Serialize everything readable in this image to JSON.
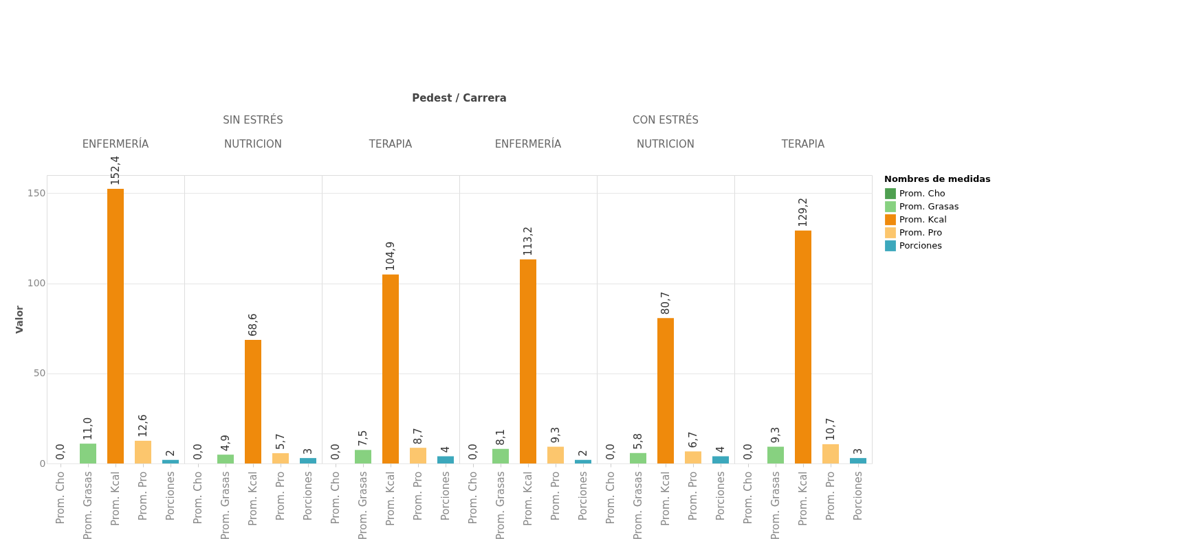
{
  "chart_data": [
    {
      "type": "bar",
      "title": "ENFERMERÍA",
      "annotations": [
        "Pedest / Carrera"
      ],
      "ylabel": "Valor",
      "categories": [
        "Prom. Cho",
        "Prom. Grasas",
        "Prom. Kcal",
        "Prom. Pro",
        "Porciones"
      ],
      "ylim": [
        0,
        160
      ],
      "yticks": [
        0,
        50,
        100,
        150
      ],
      "grid": "y",
      "series": [
        {
          "color": "#4e9f50",
          "values": [
            0,
            null,
            null,
            null,
            null
          ],
          "value_labels": [
            "0,0",
            null,
            null,
            null,
            null
          ]
        },
        {
          "color": "#87d180",
          "values": [
            null,
            11.0,
            null,
            null,
            null
          ],
          "value_labels": [
            null,
            "11,0",
            null,
            null,
            null
          ]
        },
        {
          "color": "#ef8a0c",
          "values": [
            null,
            null,
            152.4,
            null,
            null
          ],
          "value_labels": [
            null,
            null,
            "152,4",
            null,
            null
          ]
        },
        {
          "color": "#fcc66d",
          "values": [
            null,
            null,
            null,
            12.6,
            null
          ],
          "value_labels": [
            null,
            null,
            null,
            "12,6",
            null
          ]
        },
        {
          "color": "#3ca8bc",
          "values": [
            null,
            null,
            null,
            null,
            2
          ],
          "value_labels": [
            null,
            null,
            null,
            null,
            "2"
          ]
        }
      ]
    },
    {
      "type": "bar",
      "title": "NUTRICION",
      "subtitle": "SIN ESTRÉS",
      "categories": [
        "Prom. Cho",
        "Prom. Grasas",
        "Prom. Kcal",
        "Prom. Pro",
        "Porciones"
      ],
      "ylim": [
        0,
        160
      ],
      "yticks": [
        0,
        50,
        100,
        150
      ],
      "grid": "y",
      "tick_labels": "x",
      "series": [
        {
          "color": "#4e9f50",
          "values": [
            0,
            null,
            null,
            null,
            null
          ],
          "value_labels": [
            "0,0",
            null,
            null,
            null,
            null
          ]
        },
        {
          "color": "#87d180",
          "values": [
            null,
            4.9,
            null,
            null,
            null
          ],
          "value_labels": [
            null,
            "4,9",
            null,
            null,
            null
          ]
        },
        {
          "color": "#ef8a0c",
          "values": [
            null,
            null,
            68.6,
            null,
            null
          ],
          "value_labels": [
            null,
            null,
            "68,6",
            null,
            null
          ]
        },
        {
          "color": "#fcc66d",
          "values": [
            null,
            null,
            null,
            5.7,
            null
          ],
          "value_labels": [
            null,
            null,
            null,
            "5,7",
            null
          ]
        },
        {
          "color": "#3ca8bc",
          "values": [
            null,
            null,
            null,
            null,
            3
          ],
          "value_labels": [
            null,
            null,
            null,
            null,
            "3"
          ]
        }
      ]
    },
    {
      "type": "bar",
      "title": "TERAPIA",
      "categories": [
        "Prom. Cho",
        "Prom. Grasas",
        "Prom. Kcal",
        "Prom. Pro",
        "Porciones"
      ],
      "ylim": [
        0,
        160
      ],
      "yticks": [
        0,
        50,
        100,
        150
      ],
      "grid": "y",
      "tick_labels": "x",
      "series": [
        {
          "color": "#4e9f50",
          "values": [
            0,
            null,
            null,
            null,
            null
          ],
          "value_labels": [
            "0,0",
            null,
            null,
            null,
            null
          ]
        },
        {
          "color": "#87d180",
          "values": [
            null,
            7.5,
            null,
            null,
            null
          ],
          "value_labels": [
            null,
            "7,5",
            null,
            null,
            null
          ]
        },
        {
          "color": "#ef8a0c",
          "values": [
            null,
            null,
            104.9,
            null,
            null
          ],
          "value_labels": [
            null,
            null,
            "104,9",
            null,
            null
          ]
        },
        {
          "color": "#fcc66d",
          "values": [
            null,
            null,
            null,
            8.7,
            null
          ],
          "value_labels": [
            null,
            null,
            null,
            "8,7",
            null
          ]
        },
        {
          "color": "#3ca8bc",
          "values": [
            null,
            null,
            null,
            null,
            4
          ],
          "value_labels": [
            null,
            null,
            null,
            null,
            "4"
          ]
        }
      ]
    },
    {
      "type": "bar",
      "title": "ENFERMERÍA",
      "categories": [
        "Prom. Cho",
        "Prom. Grasas",
        "Prom. Kcal",
        "Prom. Pro",
        "Porciones"
      ],
      "ylim": [
        0,
        160
      ],
      "yticks": [
        0,
        50,
        100,
        150
      ],
      "grid": "y",
      "tick_labels": "x",
      "series": [
        {
          "color": "#4e9f50",
          "values": [
            0,
            null,
            null,
            null,
            null
          ],
          "value_labels": [
            "0,0",
            null,
            null,
            null,
            null
          ]
        },
        {
          "color": "#87d180",
          "values": [
            null,
            8.1,
            null,
            null,
            null
          ],
          "value_labels": [
            null,
            "8,1",
            null,
            null,
            null
          ]
        },
        {
          "color": "#ef8a0c",
          "values": [
            null,
            null,
            113.2,
            null,
            null
          ],
          "value_labels": [
            null,
            null,
            "113,2",
            null,
            null
          ]
        },
        {
          "color": "#fcc66d",
          "values": [
            null,
            null,
            null,
            9.3,
            null
          ],
          "value_labels": [
            null,
            null,
            null,
            "9,3",
            null
          ]
        },
        {
          "color": "#3ca8bc",
          "values": [
            null,
            null,
            null,
            null,
            2
          ],
          "value_labels": [
            null,
            null,
            null,
            null,
            "2"
          ]
        }
      ]
    },
    {
      "type": "bar",
      "title": "NUTRICION",
      "subtitle": "CON ESTRÉS",
      "categories": [
        "Prom. Cho",
        "Prom. Grasas",
        "Prom. Kcal",
        "Prom. Pro",
        "Porciones"
      ],
      "ylim": [
        0,
        160
      ],
      "yticks": [
        0,
        50,
        100,
        150
      ],
      "grid": "y",
      "tick_labels": "x",
      "series": [
        {
          "color": "#4e9f50",
          "values": [
            0,
            null,
            null,
            null,
            null
          ],
          "value_labels": [
            "0,0",
            null,
            null,
            null,
            null
          ]
        },
        {
          "color": "#87d180",
          "values": [
            null,
            5.8,
            null,
            null,
            null
          ],
          "value_labels": [
            null,
            "5,8",
            null,
            null,
            null
          ]
        },
        {
          "color": "#ef8a0c",
          "values": [
            null,
            null,
            80.7,
            null,
            null
          ],
          "value_labels": [
            null,
            null,
            "80,7",
            null,
            null
          ]
        },
        {
          "color": "#fcc66d",
          "values": [
            null,
            null,
            null,
            6.7,
            null
          ],
          "value_labels": [
            null,
            null,
            null,
            "6,7",
            null
          ]
        },
        {
          "color": "#3ca8bc",
          "values": [
            null,
            null,
            null,
            null,
            4
          ],
          "value_labels": [
            null,
            null,
            null,
            null,
            "4"
          ]
        }
      ]
    },
    {
      "type": "bar",
      "title": "TERAPIA",
      "categories": [
        "Prom. Cho",
        "Prom. Grasas",
        "Prom. Kcal",
        "Prom. Pro",
        "Porciones"
      ],
      "ylim": [
        0,
        160
      ],
      "yticks": [
        0,
        50,
        100,
        150
      ],
      "grid": "y",
      "tick_labels": "x",
      "legend": "right",
      "legend_title": "Nombres de medidas",
      "series": [
        {
          "name": "Prom. Cho",
          "color": "#4e9f50",
          "values": [
            0,
            null,
            null,
            null,
            null
          ],
          "value_labels": [
            "0,0",
            null,
            null,
            null,
            null
          ]
        },
        {
          "name": "Prom. Grasas",
          "color": "#87d180",
          "values": [
            null,
            9.3,
            null,
            null,
            null
          ],
          "value_labels": [
            null,
            "9,3",
            null,
            null,
            null
          ]
        },
        {
          "name": "Prom. Kcal",
          "color": "#ef8a0c",
          "values": [
            null,
            null,
            129.2,
            null,
            null
          ],
          "value_labels": [
            null,
            null,
            "129,2",
            null,
            null
          ]
        },
        {
          "name": "Prom. Pro",
          "color": "#fcc66d",
          "values": [
            null,
            null,
            null,
            10.7,
            null
          ],
          "value_labels": [
            null,
            null,
            null,
            "10,7",
            null
          ]
        },
        {
          "name": "Porciones",
          "color": "#3ca8bc",
          "values": [
            null,
            null,
            null,
            null,
            3
          ],
          "value_labels": [
            null,
            null,
            null,
            null,
            "3"
          ]
        }
      ]
    }
  ]
}
